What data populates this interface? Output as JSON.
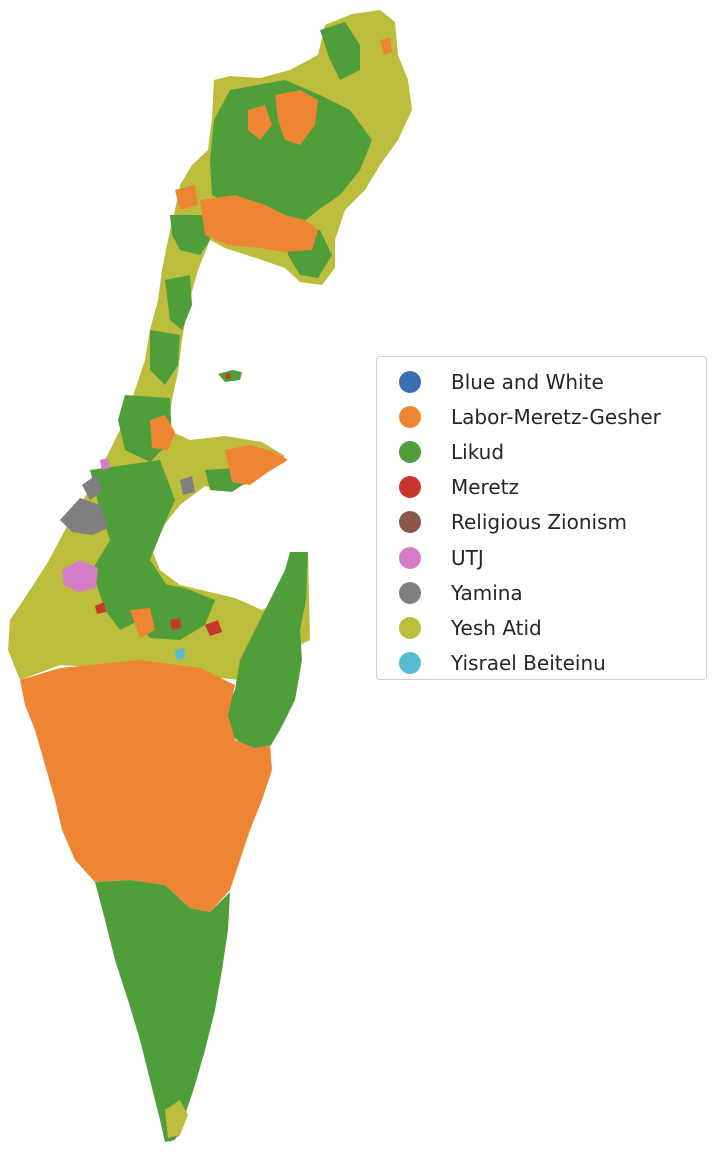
{
  "colors": {
    "yesh_atid": "#bcbd3c",
    "likud": "#4f9e3a",
    "labor": "#ee8532",
    "yamina": "#7f7f7f",
    "utj": "#d77cc6",
    "meretz": "#c9372c",
    "religious_zionism": "#8c564b",
    "blue_white": "#3a6fb0",
    "yisrael_beiteinu": "#55bcd1"
  },
  "legend": {
    "placement": "right",
    "items": [
      {
        "label": "Blue and White",
        "color": "#3a6fb0"
      },
      {
        "label": "Labor-Meretz-Gesher",
        "color": "#ee8532"
      },
      {
        "label": "Likud",
        "color": "#4f9e3a"
      },
      {
        "label": "Meretz",
        "color": "#c9372c"
      },
      {
        "label": "Religious Zionism",
        "color": "#8c564b"
      },
      {
        "label": "UTJ",
        "color": "#d77cc6"
      },
      {
        "label": "Yamina",
        "color": "#7f7f7f"
      },
      {
        "label": "Yesh Atid",
        "color": "#bcbd3c"
      },
      {
        "label": "Yisrael Beiteinu",
        "color": "#55bcd1"
      }
    ]
  }
}
